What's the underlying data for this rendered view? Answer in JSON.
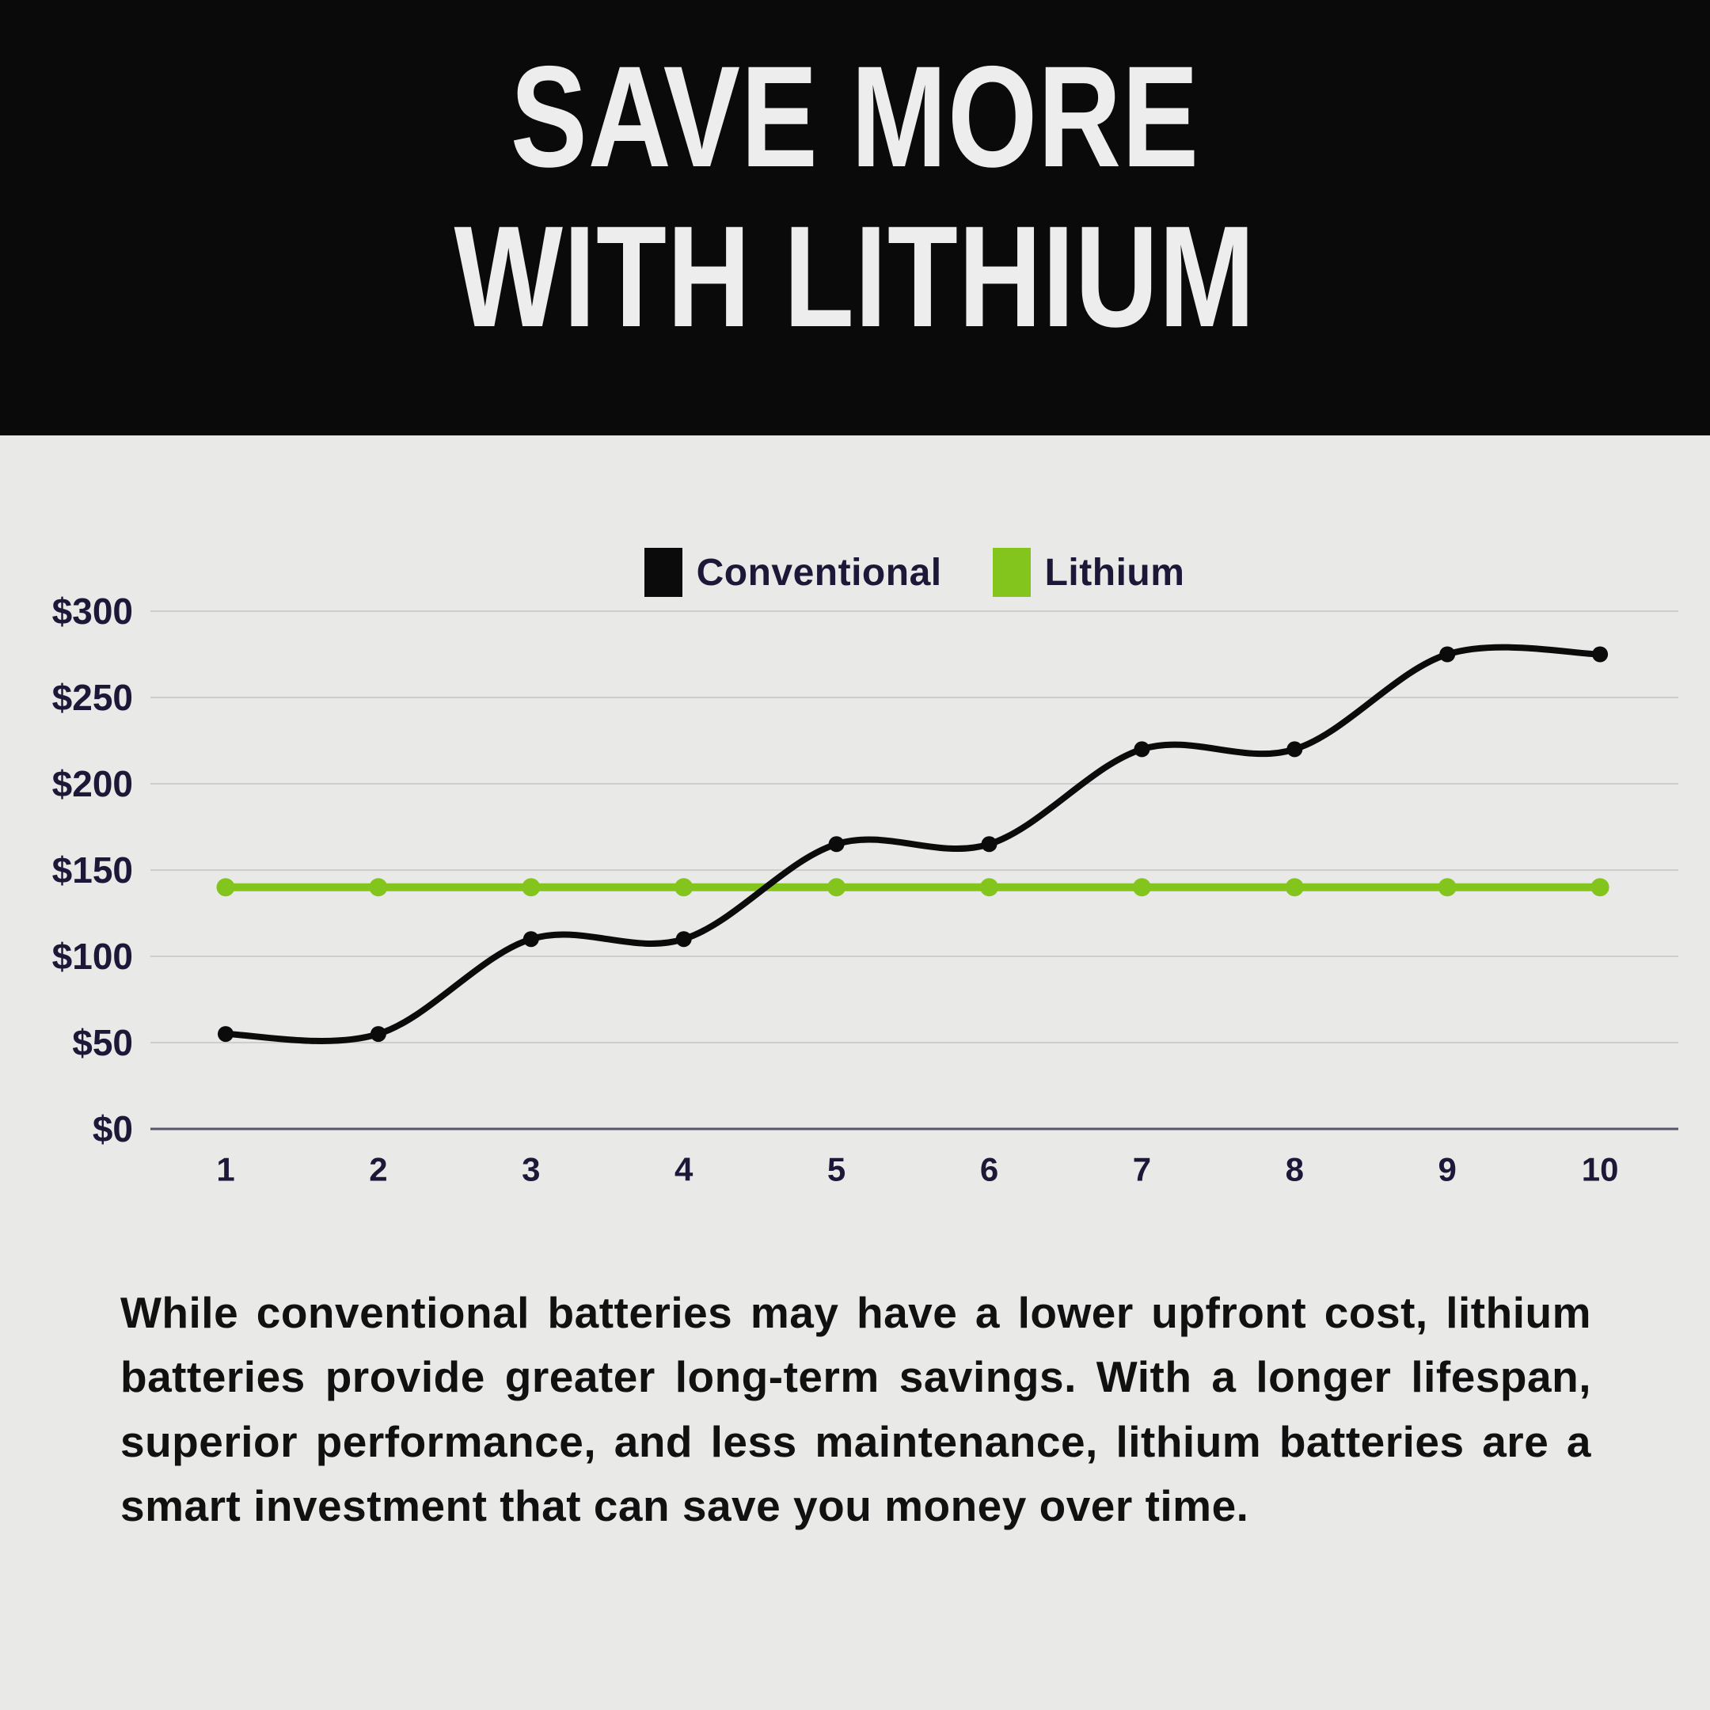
{
  "header": {
    "title_line1": "SAVE MORE",
    "title_line2": "WITH LITHIUM"
  },
  "colors": {
    "background": "#e9e9e7",
    "header_bg": "#0a0a0a",
    "title_text": "#ededed",
    "axis_text": "#1d1838",
    "gridline": "#cdcdcd",
    "axis_line": "#55556b",
    "paragraph_text": "#111111",
    "conventional": "#0b0b0b",
    "lithium": "#84c51d"
  },
  "chart_data": {
    "type": "line",
    "title": "",
    "xlabel": "",
    "ylabel": "",
    "x_labels": [
      "1",
      "2",
      "3",
      "4",
      "5",
      "6",
      "7",
      "8",
      "9",
      "10"
    ],
    "y_ticks": [
      0,
      50,
      100,
      150,
      200,
      250,
      300
    ],
    "y_tick_labels": [
      "$0",
      "$50",
      "$100",
      "$150",
      "$200",
      "$250",
      "$300"
    ],
    "ylim": [
      0,
      300
    ],
    "grid": true,
    "legend_position": "top",
    "series": [
      {
        "name": "Conventional",
        "color": "#0b0b0b",
        "marker": "circle",
        "values": [
          55,
          55,
          110,
          110,
          165,
          165,
          220,
          220,
          275,
          275
        ]
      },
      {
        "name": "Lithium",
        "color": "#84c51d",
        "marker": "circle",
        "values": [
          140,
          140,
          140,
          140,
          140,
          140,
          140,
          140,
          140,
          140
        ]
      }
    ]
  },
  "paragraph": "While conventional batteries may have a lower upfront cost, lithium batteries provide greater long-term savings. With a longer lifespan, superior performance, and less maintenance, lithium batteries are a smart investment that can save you money over time."
}
